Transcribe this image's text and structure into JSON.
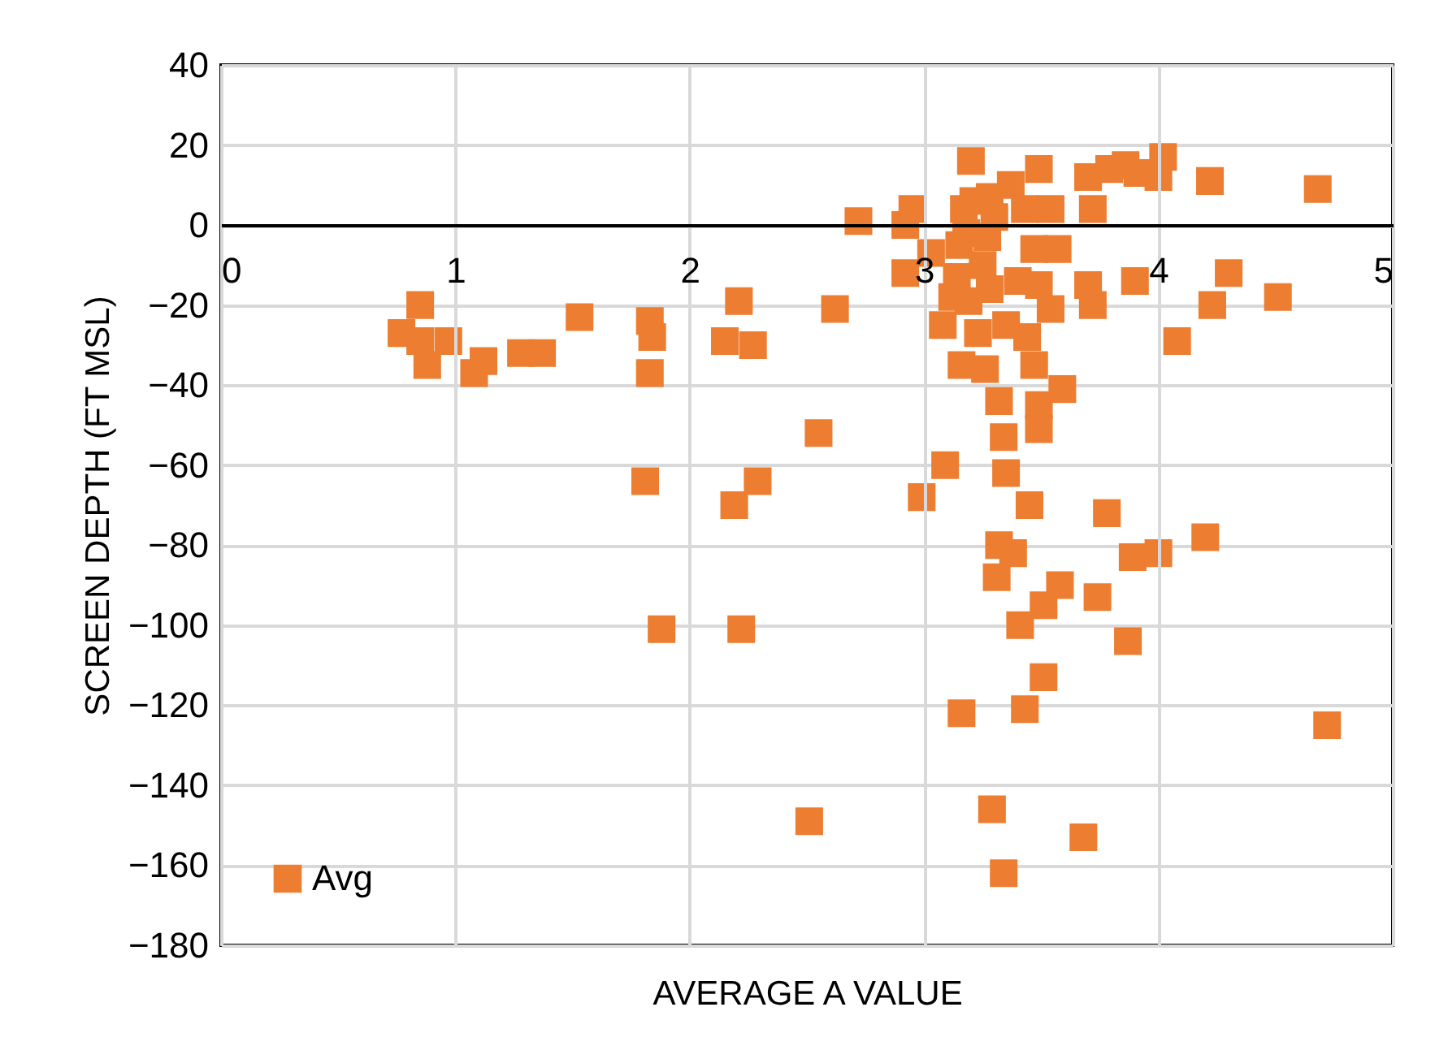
{
  "chart_data": {
    "type": "scatter",
    "xlabel": "AVERAGE A VALUE",
    "ylabel": "SCREEN DEPTH (FT MSL)",
    "xlim": [
      0,
      5
    ],
    "xticks": [
      0,
      1,
      2,
      3,
      4,
      5
    ],
    "ylim": [
      -180,
      40
    ],
    "yticks": [
      -180,
      -160,
      -140,
      -120,
      -100,
      -80,
      -60,
      -40,
      -20,
      0,
      20,
      40
    ],
    "grid": true,
    "legend": "bottom left",
    "marker": "square",
    "series": [
      {
        "name": "Avg",
        "color": "#ed7d31",
        "x": [
          0.85,
          0.77,
          0.85,
          0.88,
          0.97,
          1.08,
          1.12,
          1.28,
          1.37,
          1.53,
          1.83,
          1.84,
          1.83,
          2.21,
          2.15,
          2.27,
          2.55,
          1.81,
          2.29,
          2.19,
          2.62,
          1.88,
          2.22,
          2.51,
          2.72,
          2.92,
          2.95,
          3.2,
          3.03,
          2.92,
          3.49,
          3.37,
          3.17,
          3.21,
          3.28,
          3.54,
          3.43,
          3.7,
          3.72,
          3.79,
          3.91,
          4.02,
          4.0,
          3.86,
          4.22,
          4.68,
          3.47,
          3.57,
          3.9,
          4.3,
          4.51,
          4.23,
          4.08,
          3.14,
          3.19,
          3.28,
          3.4,
          3.49,
          3.54,
          3.72,
          3.7,
          3.08,
          3.23,
          3.35,
          3.44,
          3.16,
          3.26,
          3.47,
          3.59,
          3.32,
          3.49,
          3.49,
          3.34,
          3.35,
          3.09,
          2.99,
          3.45,
          3.78,
          3.32,
          3.38,
          3.31,
          3.58,
          3.51,
          3.41,
          3.74,
          3.89,
          4.0,
          4.2,
          3.87,
          3.51,
          3.16,
          3.43,
          4.72,
          3.29,
          3.68,
          3.34,
          3.18,
          3.25,
          3.15,
          3.3,
          3.27,
          3.12
        ],
        "values": [
          -20,
          -27,
          -29,
          -35,
          -29,
          -37,
          -34,
          -32,
          -32,
          -23,
          -24,
          -28,
          -37,
          -19,
          -29,
          -30,
          -52,
          -64,
          -64,
          -70,
          -21,
          -101,
          -101,
          -149,
          1,
          0,
          4,
          16,
          -7,
          -12,
          14,
          10,
          4,
          6,
          7,
          4,
          4,
          12,
          4,
          14,
          13,
          17,
          12,
          15,
          11,
          9,
          -6,
          -6,
          -14,
          -12,
          -18,
          -20,
          -29,
          -13,
          -19,
          -16,
          -14,
          -15,
          -21,
          -20,
          -15,
          -25,
          -27,
          -25,
          -28,
          -35,
          -36,
          -35,
          -41,
          -44,
          -45,
          -51,
          -53,
          -62,
          -60,
          -68,
          -70,
          -72,
          -80,
          -82,
          -88,
          -90,
          -95,
          -100,
          -93,
          -83,
          -82,
          -78,
          -104,
          -113,
          -122,
          -121,
          -125,
          -146,
          -153,
          -162,
          -2,
          -10,
          -5,
          2,
          -3,
          -18
        ]
      }
    ]
  }
}
